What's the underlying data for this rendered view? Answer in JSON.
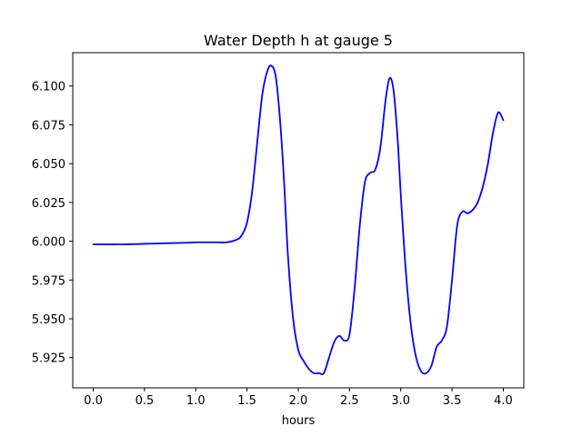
{
  "chart_data": {
    "type": "line",
    "title": "Water Depth h at gauge 5",
    "xlabel": "hours",
    "ylabel": "",
    "xlim": [
      -0.2,
      4.2
    ],
    "ylim": [
      5.9055,
      6.1215
    ],
    "grid": false,
    "legend": "none",
    "x_ticks": [
      0.0,
      0.5,
      1.0,
      1.5,
      2.0,
      2.5,
      3.0,
      3.5,
      4.0
    ],
    "x_tick_labels": [
      "0.0",
      "0.5",
      "1.0",
      "1.5",
      "2.0",
      "2.5",
      "3.0",
      "3.5",
      "4.0"
    ],
    "y_ticks": [
      5.925,
      5.95,
      5.975,
      6.0,
      6.025,
      6.05,
      6.075,
      6.1
    ],
    "y_tick_labels": [
      "5.925",
      "5.950",
      "5.975",
      "6.000",
      "6.025",
      "6.050",
      "6.075",
      "6.100"
    ],
    "series": [
      {
        "color": "#0000ff",
        "points": [
          [
            0.0,
            5.998
          ],
          [
            0.3,
            5.998
          ],
          [
            0.6,
            5.9985
          ],
          [
            0.9,
            5.999
          ],
          [
            1.0,
            5.9993
          ],
          [
            1.2,
            5.9993
          ],
          [
            1.3,
            5.9993
          ],
          [
            1.4,
            6.001
          ],
          [
            1.45,
            6.004
          ],
          [
            1.5,
            6.012
          ],
          [
            1.55,
            6.032
          ],
          [
            1.6,
            6.064
          ],
          [
            1.65,
            6.095
          ],
          [
            1.7,
            6.11
          ],
          [
            1.74,
            6.113
          ],
          [
            1.78,
            6.106
          ],
          [
            1.82,
            6.08
          ],
          [
            1.86,
            6.04
          ],
          [
            1.9,
            5.99
          ],
          [
            1.95,
            5.95
          ],
          [
            2.0,
            5.93
          ],
          [
            2.05,
            5.923
          ],
          [
            2.1,
            5.918
          ],
          [
            2.15,
            5.915
          ],
          [
            2.2,
            5.915
          ],
          [
            2.25,
            5.915
          ],
          [
            2.3,
            5.925
          ],
          [
            2.35,
            5.935
          ],
          [
            2.4,
            5.939
          ],
          [
            2.45,
            5.936
          ],
          [
            2.5,
            5.94
          ],
          [
            2.55,
            5.97
          ],
          [
            2.6,
            6.01
          ],
          [
            2.65,
            6.038
          ],
          [
            2.7,
            6.044
          ],
          [
            2.75,
            6.046
          ],
          [
            2.8,
            6.06
          ],
          [
            2.85,
            6.09
          ],
          [
            2.89,
            6.105
          ],
          [
            2.93,
            6.097
          ],
          [
            2.97,
            6.065
          ],
          [
            3.0,
            6.03
          ],
          [
            3.05,
            5.98
          ],
          [
            3.1,
            5.945
          ],
          [
            3.15,
            5.925
          ],
          [
            3.2,
            5.916
          ],
          [
            3.25,
            5.915
          ],
          [
            3.3,
            5.92
          ],
          [
            3.35,
            5.932
          ],
          [
            3.4,
            5.936
          ],
          [
            3.45,
            5.945
          ],
          [
            3.5,
            5.975
          ],
          [
            3.55,
            6.01
          ],
          [
            3.6,
            6.019
          ],
          [
            3.65,
            6.018
          ],
          [
            3.7,
            6.02
          ],
          [
            3.75,
            6.025
          ],
          [
            3.8,
            6.035
          ],
          [
            3.85,
            6.05
          ],
          [
            3.9,
            6.07
          ],
          [
            3.95,
            6.083
          ],
          [
            4.0,
            6.078
          ]
        ]
      }
    ]
  }
}
